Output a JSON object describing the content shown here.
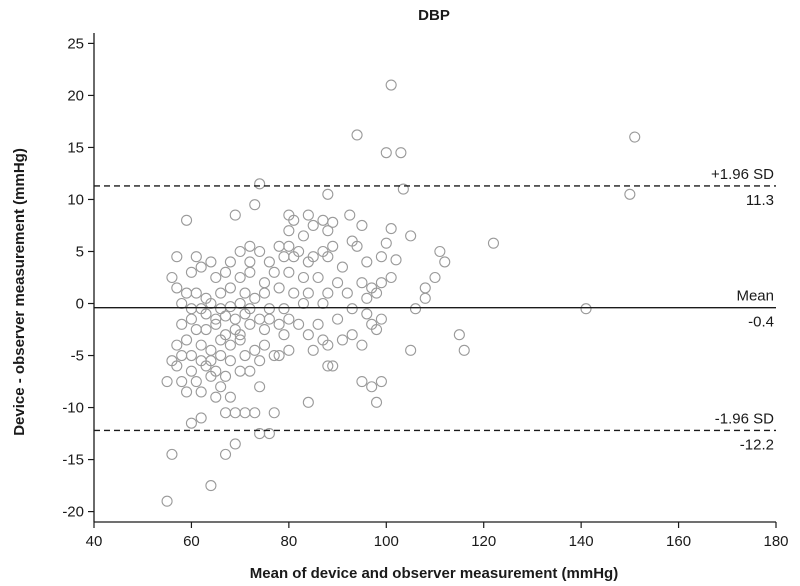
{
  "chart_data": {
    "type": "scatter",
    "title": "DBP",
    "xlabel": "Mean of device and observer measurement (mmHg)",
    "ylabel": "Device - observer measurement (mmHg)",
    "xlim": [
      40,
      180
    ],
    "ylim": [
      -21,
      26
    ],
    "xticks": [
      40,
      60,
      80,
      100,
      120,
      140,
      160,
      180
    ],
    "yticks": [
      -20,
      -15,
      -10,
      -5,
      0,
      5,
      10,
      15,
      20,
      25
    ],
    "grid": false,
    "reference_lines": [
      {
        "label": "+1.96 SD",
        "value_label": "11.3",
        "y": 11.3,
        "style": "dashed"
      },
      {
        "label": "Mean",
        "value_label": "-0.4",
        "y": -0.4,
        "style": "solid"
      },
      {
        "label": "-1.96 SD",
        "value_label": "-12.2",
        "y": -12.2,
        "style": "dashed"
      }
    ],
    "marker": {
      "shape": "open-circle",
      "color": "#9a9a9a"
    },
    "points": [
      [
        101,
        21
      ],
      [
        94,
        16.2
      ],
      [
        151,
        16
      ],
      [
        100,
        14.5
      ],
      [
        103,
        14.5
      ],
      [
        74,
        11.5
      ],
      [
        103.5,
        11
      ],
      [
        150,
        10.5
      ],
      [
        88,
        10.5
      ],
      [
        69,
        8.5
      ],
      [
        59,
        8
      ],
      [
        73,
        9.5
      ],
      [
        80,
        8.5
      ],
      [
        81,
        8
      ],
      [
        84,
        8.5
      ],
      [
        87,
        8
      ],
      [
        85,
        7.5
      ],
      [
        92.5,
        8.5
      ],
      [
        89,
        7.8
      ],
      [
        95,
        7.5
      ],
      [
        80,
        7
      ],
      [
        88,
        7
      ],
      [
        101,
        7.2
      ],
      [
        83,
        6.5
      ],
      [
        105,
        6.5
      ],
      [
        93,
        6
      ],
      [
        100,
        5.8
      ],
      [
        122,
        5.8
      ],
      [
        70,
        5
      ],
      [
        72,
        5.5
      ],
      [
        78,
        5.5
      ],
      [
        80,
        5.5
      ],
      [
        82,
        5
      ],
      [
        85,
        4.5
      ],
      [
        87,
        5
      ],
      [
        89,
        5.5
      ],
      [
        94,
        5.5
      ],
      [
        111,
        5
      ],
      [
        57,
        4.5
      ],
      [
        61,
        4.5
      ],
      [
        64,
        4
      ],
      [
        68,
        4
      ],
      [
        72,
        4
      ],
      [
        74,
        5
      ],
      [
        76,
        4
      ],
      [
        79,
        4.5
      ],
      [
        81,
        4.5
      ],
      [
        84,
        4
      ],
      [
        88,
        4.5
      ],
      [
        91,
        3.5
      ],
      [
        96,
        4
      ],
      [
        99,
        4.5
      ],
      [
        102,
        4.2
      ],
      [
        112,
        4
      ],
      [
        56,
        2.5
      ],
      [
        60,
        3
      ],
      [
        62,
        3.5
      ],
      [
        65,
        2.5
      ],
      [
        67,
        3
      ],
      [
        70,
        2.5
      ],
      [
        72,
        3
      ],
      [
        75,
        2
      ],
      [
        77,
        3
      ],
      [
        80,
        3
      ],
      [
        83,
        2.5
      ],
      [
        86,
        2.5
      ],
      [
        90,
        2
      ],
      [
        95,
        2
      ],
      [
        97,
        1.5
      ],
      [
        99,
        2
      ],
      [
        101,
        2.5
      ],
      [
        108,
        1.5
      ],
      [
        110,
        2.5
      ],
      [
        57,
        1.5
      ],
      [
        59,
        1
      ],
      [
        61,
        1
      ],
      [
        63,
        0.5
      ],
      [
        66,
        1
      ],
      [
        68,
        1.5
      ],
      [
        71,
        1
      ],
      [
        73,
        0.5
      ],
      [
        75,
        1
      ],
      [
        78,
        1.5
      ],
      [
        81,
        1
      ],
      [
        84,
        1
      ],
      [
        88,
        1
      ],
      [
        92,
        1
      ],
      [
        96,
        0.5
      ],
      [
        98,
        1
      ],
      [
        108,
        0.5
      ],
      [
        58,
        0
      ],
      [
        60,
        -0.5
      ],
      [
        62,
        -0.5
      ],
      [
        64,
        0
      ],
      [
        66,
        -0.5
      ],
      [
        68,
        -0.3
      ],
      [
        70,
        0
      ],
      [
        72,
        -0.5
      ],
      [
        76,
        -0.5
      ],
      [
        79,
        -0.5
      ],
      [
        83,
        0
      ],
      [
        87,
        0
      ],
      [
        93,
        -0.5
      ],
      [
        106,
        -0.5
      ],
      [
        141,
        -0.5
      ],
      [
        60,
        -1.5
      ],
      [
        63,
        -1
      ],
      [
        65,
        -1.5
      ],
      [
        67,
        -1.2
      ],
      [
        69,
        -1.5
      ],
      [
        71,
        -1
      ],
      [
        74,
        -1.5
      ],
      [
        76,
        -1.5
      ],
      [
        78,
        -2
      ],
      [
        80,
        -1.5
      ],
      [
        82,
        -2
      ],
      [
        86,
        -2
      ],
      [
        90,
        -1.5
      ],
      [
        96,
        -1
      ],
      [
        97,
        -2
      ],
      [
        99,
        -1.5
      ],
      [
        58,
        -2
      ],
      [
        61,
        -2.5
      ],
      [
        63,
        -2.5
      ],
      [
        65,
        -2
      ],
      [
        67,
        -3
      ],
      [
        69,
        -2.5
      ],
      [
        70,
        -3
      ],
      [
        72,
        -2
      ],
      [
        75,
        -2.5
      ],
      [
        79,
        -3
      ],
      [
        84,
        -3
      ],
      [
        87,
        -3.5
      ],
      [
        91,
        -3.5
      ],
      [
        93,
        -3
      ],
      [
        98,
        -2.5
      ],
      [
        115,
        -3
      ],
      [
        57,
        -4
      ],
      [
        59,
        -3.5
      ],
      [
        62,
        -4
      ],
      [
        64,
        -4.5
      ],
      [
        66,
        -3.5
      ],
      [
        68,
        -4
      ],
      [
        70,
        -3.5
      ],
      [
        73,
        -4.5
      ],
      [
        75,
        -4
      ],
      [
        77,
        -5
      ],
      [
        80,
        -4.5
      ],
      [
        85,
        -4.5
      ],
      [
        88,
        -4
      ],
      [
        95,
        -4
      ],
      [
        105,
        -4.5
      ],
      [
        116,
        -4.5
      ],
      [
        56,
        -5.5
      ],
      [
        58,
        -5
      ],
      [
        60,
        -5
      ],
      [
        62,
        -5.5
      ],
      [
        64,
        -5.5
      ],
      [
        66,
        -5
      ],
      [
        68,
        -5.5
      ],
      [
        71,
        -5
      ],
      [
        74,
        -5.5
      ],
      [
        78,
        -5
      ],
      [
        88,
        -6
      ],
      [
        89,
        -6
      ],
      [
        57,
        -6
      ],
      [
        60,
        -6.5
      ],
      [
        63,
        -6
      ],
      [
        65,
        -6.5
      ],
      [
        67,
        -7
      ],
      [
        70,
        -6.5
      ],
      [
        72,
        -6.5
      ],
      [
        58,
        -7.5
      ],
      [
        61,
        -7.5
      ],
      [
        64,
        -7
      ],
      [
        66,
        -8
      ],
      [
        74,
        -8
      ],
      [
        55,
        -7.5
      ],
      [
        95,
        -7.5
      ],
      [
        97,
        -8
      ],
      [
        99,
        -7.5
      ],
      [
        59,
        -8.5
      ],
      [
        62,
        -8.5
      ],
      [
        65,
        -9
      ],
      [
        68,
        -9
      ],
      [
        84,
        -9.5
      ],
      [
        98,
        -9.5
      ],
      [
        60,
        -11.5
      ],
      [
        62,
        -11
      ],
      [
        67,
        -10.5
      ],
      [
        69,
        -10.5
      ],
      [
        71,
        -10.5
      ],
      [
        73,
        -10.5
      ],
      [
        77,
        -10.5
      ],
      [
        74,
        -12.5
      ],
      [
        76,
        -12.5
      ],
      [
        69,
        -13.5
      ],
      [
        67,
        -14.5
      ],
      [
        56,
        -14.5
      ],
      [
        64,
        -17.5
      ],
      [
        55,
        -19
      ]
    ]
  }
}
